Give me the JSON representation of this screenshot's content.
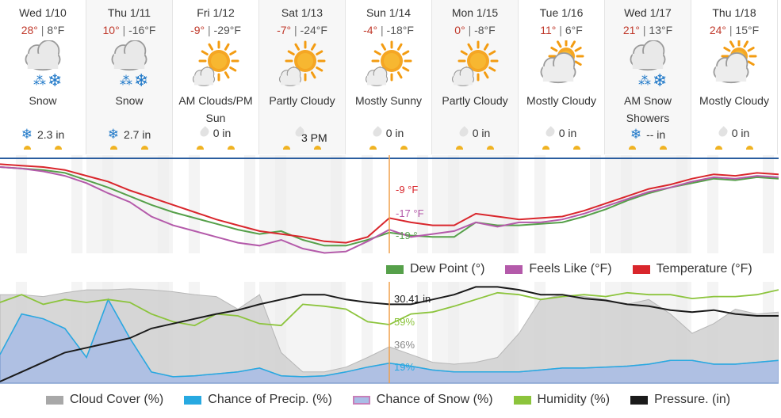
{
  "days": [
    {
      "name": "Wed 1/10",
      "hi": "28°",
      "lo": "8°F",
      "icon": "snow-icon",
      "cond": "Snow",
      "precip_icon": "snowflake-icon",
      "precip": "2.3 in"
    },
    {
      "name": "Thu 1/11",
      "hi": "10°",
      "lo": "-16°F",
      "icon": "snow-icon",
      "cond": "Snow",
      "precip_icon": "snowflake-icon",
      "precip": "2.7 in"
    },
    {
      "name": "Fri 1/12",
      "hi": "-9°",
      "lo": "-29°F",
      "icon": "sun-cloud-icon",
      "cond": "AM Clouds/PM Sun",
      "precip_icon": "raindrop-icon",
      "precip": "0 in"
    },
    {
      "name": "Sat 1/13",
      "hi": "-7°",
      "lo": "-24°F",
      "icon": "sun-cloud-icon",
      "cond": "Partly Cloudy",
      "precip_icon": "raindrop-icon",
      "precip": ""
    },
    {
      "name": "Sun 1/14",
      "hi": "-4°",
      "lo": "-18°F",
      "icon": "sun-cloud-icon",
      "cond": "Mostly Sunny",
      "precip_icon": "raindrop-icon",
      "precip": "0 in"
    },
    {
      "name": "Mon 1/15",
      "hi": "0°",
      "lo": "-8°F",
      "icon": "sun-cloud-icon",
      "cond": "Partly Cloudy",
      "precip_icon": "raindrop-icon",
      "precip": "0 in"
    },
    {
      "name": "Tue 1/16",
      "hi": "11°",
      "lo": "6°F",
      "icon": "cloud-sun-icon",
      "cond": "Mostly Cloudy",
      "precip_icon": "raindrop-icon",
      "precip": "0 in"
    },
    {
      "name": "Wed 1/17",
      "hi": "21°",
      "lo": "13°F",
      "icon": "snow-icon",
      "cond": "AM Snow Showers",
      "precip_icon": "snowflake-icon",
      "precip": "-- in"
    },
    {
      "name": "Thu 1/18",
      "hi": "24°",
      "lo": "15°F",
      "icon": "cloud-sun-icon",
      "cond": "Mostly Cloudy",
      "precip_icon": "raindrop-icon",
      "precip": "0 in"
    }
  ],
  "cursor": {
    "time": "3 PM",
    "temperature": "-9 °F",
    "feels_like": "-17 °F",
    "dew_point": "-19 °",
    "pressure": "30.41 in",
    "humidity": "59%",
    "cloud_cover": "36%",
    "chance_precip": "19%"
  },
  "colors": {
    "temperature": "#d9262c",
    "feels_like": "#b45aaa",
    "dew_point": "#56a04a",
    "cloud_cover": "#a8a8a8",
    "chance_precip": "#27a9e1",
    "chance_snow": "#7b9bd3",
    "humidity": "#8cc43c",
    "pressure": "#1a1a1a",
    "freezing": "#2a5d9f",
    "cursor": "#f0a04b"
  },
  "legend_top": [
    {
      "key": "dew_point",
      "label": "Dew Point (°)"
    },
    {
      "key": "feels_like",
      "label": "Feels Like (°F)"
    },
    {
      "key": "temperature",
      "label": "Temperature (°F)"
    }
  ],
  "legend_bottom": [
    {
      "key": "cloud_cover",
      "label": "Cloud Cover (%)"
    },
    {
      "key": "chance_precip",
      "label": "Chance of Precip. (%)"
    },
    {
      "key": "chance_snow",
      "label": "Chance of Snow (%)"
    },
    {
      "key": "humidity",
      "label": "Humidity (%)"
    },
    {
      "key": "pressure",
      "label": "Pressure. (in)"
    }
  ],
  "chart_data": [
    {
      "type": "line",
      "x_unit": "hours from start of Wed 1/10",
      "x": [
        0,
        6,
        12,
        18,
        24,
        30,
        36,
        42,
        48,
        54,
        60,
        66,
        72,
        78,
        84,
        90,
        96,
        102,
        108,
        114,
        120,
        126,
        132,
        138,
        144,
        150,
        156,
        162,
        168,
        174,
        180,
        186,
        192,
        198,
        204,
        210,
        216
      ],
      "ylim": [
        -30,
        32
      ],
      "series": [
        {
          "name": "Temperature (°F)",
          "key": "temperature",
          "values": [
            28,
            27,
            26,
            24,
            20,
            16,
            10,
            5,
            0,
            -5,
            -10,
            -14,
            -18,
            -20,
            -22,
            -25,
            -26,
            -22,
            -9,
            -12,
            -14,
            -14,
            -6,
            -8,
            -10,
            -9,
            -8,
            -4,
            1,
            6,
            11,
            14,
            18,
            21,
            20,
            22,
            21
          ]
        },
        {
          "name": "Feels Like (°F)",
          "key": "feels_like",
          "values": [
            26,
            25,
            23,
            20,
            15,
            8,
            2,
            -8,
            -14,
            -18,
            -22,
            -26,
            -28,
            -24,
            -30,
            -33,
            -32,
            -25,
            -17,
            -22,
            -20,
            -18,
            -12,
            -15,
            -12,
            -12,
            -10,
            -6,
            -1,
            4,
            9,
            12,
            16,
            19,
            18,
            20,
            19
          ]
        },
        {
          "name": "Dew Point (°)",
          "key": "dew_point",
          "values": [
            26,
            25,
            24,
            22,
            17,
            12,
            6,
            0,
            -5,
            -9,
            -13,
            -17,
            -20,
            -18,
            -24,
            -28,
            -28,
            -24,
            -19,
            -21,
            -22,
            -22,
            -12,
            -14,
            -14,
            -13,
            -12,
            -8,
            -3,
            3,
            8,
            12,
            15,
            18,
            17,
            19,
            18
          ]
        }
      ]
    },
    {
      "type": "area",
      "x_unit": "hours from start of Wed 1/10",
      "x": [
        0,
        6,
        12,
        18,
        24,
        30,
        36,
        42,
        48,
        54,
        60,
        66,
        72,
        78,
        84,
        90,
        96,
        102,
        108,
        114,
        120,
        126,
        132,
        138,
        144,
        150,
        156,
        162,
        168,
        174,
        180,
        186,
        192,
        198,
        204,
        210,
        216
      ],
      "ylim": [
        0,
        100
      ],
      "series": [
        {
          "name": "Cloud Cover (%)",
          "key": "cloud_cover",
          "values": [
            90,
            90,
            88,
            92,
            95,
            95,
            96,
            95,
            93,
            90,
            88,
            75,
            90,
            30,
            10,
            10,
            15,
            25,
            36,
            28,
            20,
            18,
            20,
            25,
            50,
            85,
            90,
            88,
            85,
            80,
            85,
            70,
            50,
            60,
            75,
            70,
            72
          ]
        },
        {
          "name": "Chance of Precip. (%)",
          "key": "chance_precip",
          "values": [
            28,
            70,
            65,
            55,
            25,
            85,
            45,
            10,
            5,
            6,
            8,
            10,
            14,
            6,
            5,
            6,
            10,
            15,
            19,
            16,
            12,
            10,
            10,
            10,
            10,
            12,
            14,
            14,
            15,
            16,
            18,
            22,
            22,
            18,
            18,
            20,
            22
          ]
        },
        {
          "name": "Chance of Snow (%)",
          "key": "chance_snow",
          "values": [
            28,
            70,
            65,
            55,
            25,
            85,
            45,
            10,
            5,
            6,
            8,
            10,
            14,
            6,
            5,
            6,
            10,
            15,
            19,
            16,
            12,
            10,
            10,
            10,
            10,
            12,
            14,
            14,
            15,
            16,
            18,
            22,
            22,
            18,
            18,
            20,
            22
          ]
        },
        {
          "name": "Humidity (%)",
          "key": "humidity",
          "values": [
            82,
            90,
            80,
            85,
            82,
            85,
            82,
            70,
            62,
            58,
            70,
            68,
            60,
            58,
            80,
            78,
            75,
            62,
            59,
            70,
            72,
            78,
            85,
            92,
            90,
            85,
            88,
            90,
            88,
            92,
            90,
            90,
            86,
            88,
            88,
            90,
            95
          ]
        },
        {
          "name": "Pressure. (in)",
          "key": "pressure",
          "values": [
            0,
            10,
            20,
            30,
            35,
            40,
            45,
            55,
            60,
            65,
            70,
            74,
            80,
            85,
            90,
            90,
            85,
            82,
            80,
            80,
            85,
            90,
            98,
            98,
            95,
            90,
            90,
            86,
            84,
            80,
            78,
            74,
            72,
            74,
            70,
            68,
            68
          ]
        }
      ]
    }
  ]
}
